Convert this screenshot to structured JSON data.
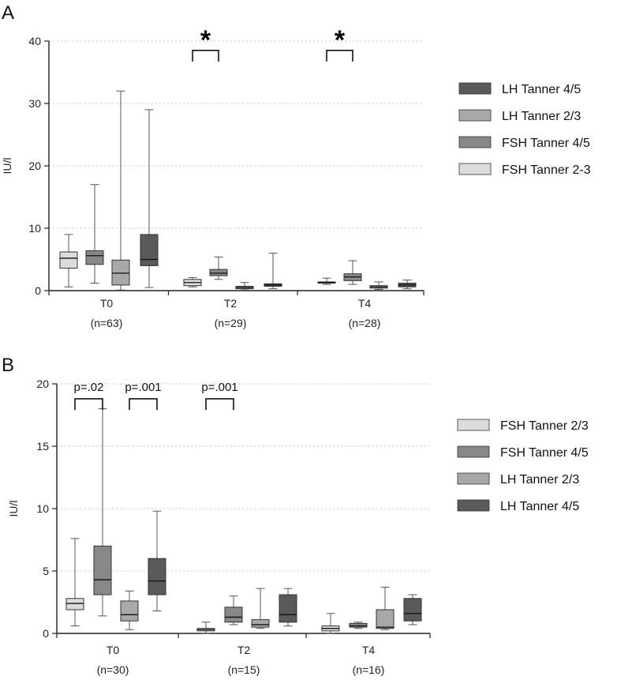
{
  "chart_data": [
    {
      "type": "boxplot",
      "panel_label": "A",
      "ylabel": "IU/l",
      "ylim": [
        0,
        40
      ],
      "yticks": [
        0,
        10,
        20,
        30,
        40
      ],
      "grid": true,
      "categories": [
        "T0",
        "T2",
        "T4"
      ],
      "category_n": [
        "(n=63)",
        "(n=29)",
        "(n=28)"
      ],
      "series": [
        {
          "name": "FSH Tanner 2-3",
          "color": "#dcdcdc",
          "boxes": [
            {
              "min": 0.6,
              "q1": 3.6,
              "median": 5.2,
              "q3": 6.2,
              "max": 9.0
            },
            {
              "min": 0.6,
              "q1": 0.8,
              "median": 1.3,
              "q3": 1.8,
              "max": 2.1
            },
            {
              "min": 1.0,
              "q1": 1.2,
              "median": 1.3,
              "q3": 1.4,
              "max": 2.0
            }
          ]
        },
        {
          "name": "FSH  Tanner 4/5",
          "color": "#888888",
          "boxes": [
            {
              "min": 1.2,
              "q1": 4.2,
              "median": 5.6,
              "q3": 6.4,
              "max": 17.0
            },
            {
              "min": 1.8,
              "q1": 2.4,
              "median": 2.8,
              "q3": 3.4,
              "max": 5.4
            },
            {
              "min": 1.0,
              "q1": 1.6,
              "median": 2.2,
              "q3": 2.7,
              "max": 4.8
            }
          ]
        },
        {
          "name": "LH Tanner 2/3",
          "color": "#a8a8a8",
          "boxes": [
            {
              "min": 0.1,
              "q1": 0.9,
              "median": 2.8,
              "q3": 4.9,
              "max": 32.0
            },
            {
              "min": 0.1,
              "q1": 0.3,
              "median": 0.5,
              "q3": 0.7,
              "max": 1.3
            },
            {
              "min": 0.2,
              "q1": 0.4,
              "median": 0.6,
              "q3": 0.8,
              "max": 1.4
            }
          ]
        },
        {
          "name": "LH Tanner 4/5",
          "color": "#5a5a5a",
          "boxes": [
            {
              "min": 0.5,
              "q1": 4.0,
              "median": 5.0,
              "q3": 9.0,
              "max": 29.0
            },
            {
              "min": 0.3,
              "q1": 0.7,
              "median": 0.9,
              "q3": 1.1,
              "max": 6.0
            },
            {
              "min": 0.3,
              "q1": 0.6,
              "median": 0.9,
              "q3": 1.2,
              "max": 1.7
            }
          ]
        }
      ],
      "legend_order": [
        3,
        2,
        1,
        0
      ],
      "legend_position": "right",
      "annotations": [
        {
          "text": "*",
          "category": 1,
          "from_series": 0,
          "to_series": 1,
          "y": 38.5
        },
        {
          "text": "*",
          "category": 2,
          "from_series": 0,
          "to_series": 1,
          "y": 38.5
        }
      ]
    },
    {
      "type": "boxplot",
      "panel_label": "B",
      "ylabel": "IU/l",
      "ylim": [
        0,
        20
      ],
      "yticks": [
        0,
        5,
        10,
        15,
        20
      ],
      "grid": true,
      "categories": [
        "T0",
        "T2",
        "T4"
      ],
      "category_n": [
        "(n=30)",
        "(n=15)",
        "(n=16)"
      ],
      "series": [
        {
          "name": "FSH Tanner 2/3",
          "color": "#dcdcdc",
          "boxes": [
            {
              "min": 0.6,
              "q1": 1.9,
              "median": 2.4,
              "q3": 2.8,
              "max": 7.6
            },
            {
              "min": 0.0,
              "q1": 0.2,
              "median": 0.3,
              "q3": 0.4,
              "max": 0.9
            },
            {
              "min": 0.0,
              "q1": 0.2,
              "median": 0.4,
              "q3": 0.6,
              "max": 1.6
            }
          ]
        },
        {
          "name": "FSH Tanner 4/5",
          "color": "#888888",
          "boxes": [
            {
              "min": 1.4,
              "q1": 3.1,
              "median": 4.3,
              "q3": 7.0,
              "max": 18.0
            },
            {
              "min": 0.7,
              "q1": 0.9,
              "median": 1.3,
              "q3": 2.1,
              "max": 3.0
            },
            {
              "min": 0.4,
              "q1": 0.5,
              "median": 0.6,
              "q3": 0.8,
              "max": 0.9
            }
          ]
        },
        {
          "name": "LH Tanner 2/3",
          "color": "#a8a8a8",
          "boxes": [
            {
              "min": 0.3,
              "q1": 1.0,
              "median": 1.5,
              "q3": 2.6,
              "max": 3.4
            },
            {
              "min": 0.4,
              "q1": 0.5,
              "median": 0.7,
              "q3": 1.1,
              "max": 3.6
            },
            {
              "min": 0.3,
              "q1": 0.4,
              "median": 0.5,
              "q3": 1.9,
              "max": 3.7
            }
          ]
        },
        {
          "name": "LH Tanner 4/5",
          "color": "#5a5a5a",
          "boxes": [
            {
              "min": 1.8,
              "q1": 3.1,
              "median": 4.2,
              "q3": 6.0,
              "max": 9.8
            },
            {
              "min": 0.6,
              "q1": 0.9,
              "median": 1.5,
              "q3": 3.1,
              "max": 3.6
            },
            {
              "min": 0.7,
              "q1": 1.0,
              "median": 1.6,
              "q3": 2.8,
              "max": 3.1
            }
          ]
        }
      ],
      "legend_order": [
        0,
        1,
        2,
        3
      ],
      "legend_position": "right",
      "annotations": [
        {
          "text": "p=.02",
          "category": 0,
          "from_series": 0,
          "to_series": 1,
          "y": 18.8
        },
        {
          "text": "p=.001",
          "category": 0,
          "from_series": 2,
          "to_series": 3,
          "y": 18.8
        },
        {
          "text": "p=.001",
          "category": 1,
          "from_series": 0,
          "to_series": 1,
          "y": 18.8
        }
      ]
    }
  ]
}
